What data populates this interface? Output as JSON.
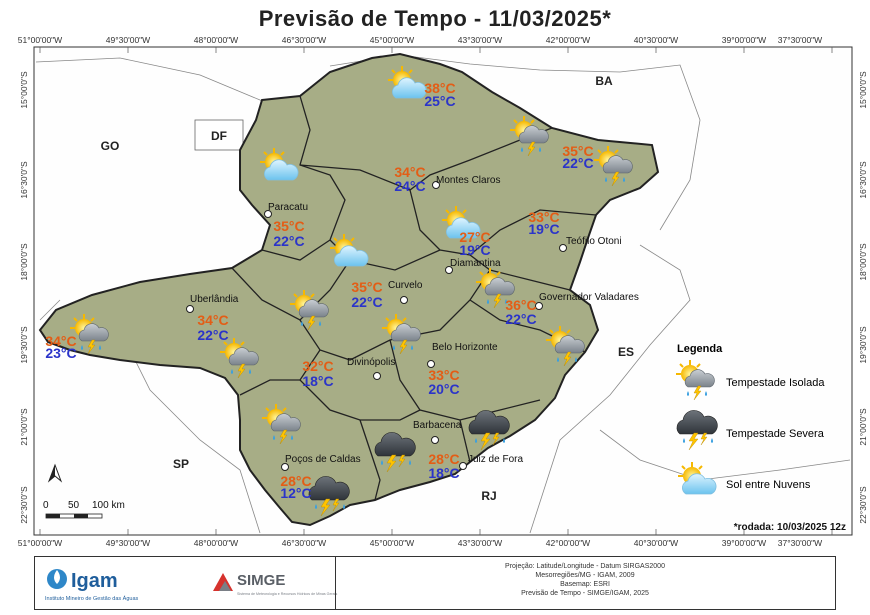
{
  "title": "Previsão de Tempo - 11/03/2025*",
  "rodada": "*rodada: 10/03/2025 12z",
  "colors": {
    "max_temp": "#e35d16",
    "min_temp": "#2b34c9",
    "mg_fill": "#a7ad86",
    "frame": "#333333"
  },
  "axes": {
    "lon_top": [
      "51°00'00\"W",
      "49°30'00\"W",
      "48°00'00\"W",
      "46°30'00\"W",
      "45°00'00\"W",
      "43°30'00\"W",
      "42°00'00\"W",
      "40°30'00\"W",
      "39°00'00\"W",
      "37°30'00\"W"
    ],
    "lon_bottom": [
      "51°00'00\"W",
      "49°30'00\"W",
      "48°00'00\"W",
      "46°30'00\"W",
      "45°00'00\"W",
      "43°30'00\"W",
      "42°00'00\"W",
      "40°30'00\"W",
      "39°00'00\"W",
      "37°30'00\"W"
    ],
    "lat": [
      "15°00'0\"S",
      "16°30'0\"S",
      "18°00'0\"S",
      "19°30'0\"S",
      "21°00'0\"S",
      "22°30'0\"S"
    ]
  },
  "states": [
    "GO",
    "DF",
    "BA",
    "ES",
    "SP",
    "RJ"
  ],
  "cities": [
    {
      "name": "Montes Claros"
    },
    {
      "name": "Paracatu"
    },
    {
      "name": "Teófilo Otoni"
    },
    {
      "name": "Diamantina"
    },
    {
      "name": "Curvelo"
    },
    {
      "name": "Uberlândia"
    },
    {
      "name": "Governador Valadares"
    },
    {
      "name": "Belo Horizonte"
    },
    {
      "name": "Divinópolis"
    },
    {
      "name": "Barbacena"
    },
    {
      "name": "Poços de Caldas"
    },
    {
      "name": "Juiz de Fora"
    }
  ],
  "forecasts": [
    {
      "max": "38°C",
      "min": "25°C",
      "icon": "sun-clouds-icon"
    },
    {
      "max": "35°C",
      "min": "22°C",
      "icon": "isolated-storm-icon"
    },
    {
      "max": "34°C",
      "min": "24°C",
      "icon": "isolated-storm-icon"
    },
    {
      "max": "35°C",
      "min": "22°C",
      "icon": "sun-clouds-icon"
    },
    {
      "max": "27°C",
      "min": "19°C",
      "icon": "sun-clouds-icon"
    },
    {
      "max": "33°C",
      "min": "19°C",
      "icon": "isolated-storm-icon"
    },
    {
      "max": "35°C",
      "min": "22°C",
      "icon": "sun-clouds-icon"
    },
    {
      "max": "36°C",
      "min": "22°C",
      "icon": "isolated-storm-icon"
    },
    {
      "max": "34°C",
      "min": "22°C",
      "icon": "isolated-storm-icon"
    },
    {
      "max": "34°C",
      "min": "23°C",
      "icon": "isolated-storm-icon"
    },
    {
      "max": "32°C",
      "min": "18°C",
      "icon": "isolated-storm-icon"
    },
    {
      "max": "33°C",
      "min": "20°C",
      "icon": "isolated-storm-icon"
    },
    {
      "max": "28°C",
      "min": "18°C",
      "icon": "severe-storm-icon"
    },
    {
      "max": "28°C",
      "min": "12°C",
      "icon": "severe-storm-icon"
    }
  ],
  "legend": {
    "title": "Legenda",
    "items": [
      "Tempestade Isolada",
      "Tempestade Severa",
      "Sol entre Nuvens"
    ]
  },
  "scale": {
    "labels": [
      "0",
      "50",
      "100 km"
    ],
    "north": "N"
  },
  "footer": {
    "igam": "Igam",
    "igam_sub": "Instituto Mineiro de Gestão das Águas",
    "simge": "SIMGE",
    "simge_sub": "Sistema de Meteorologia e Recursos Hídricos de Minas Gerais",
    "credits": [
      "Projeção: Latitude/Longitude - Datum SIRGAS2000",
      "Mesorregiões/MG - IGAM, 2009",
      "Basemap: ESRI",
      "Previsão de Tempo - SIMGE/IGAM, 2025"
    ]
  }
}
